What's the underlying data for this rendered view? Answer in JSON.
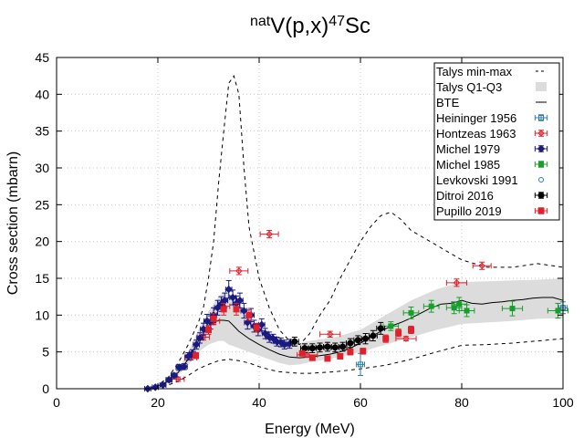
{
  "chart_data": {
    "type": "scatter",
    "title": {
      "sup1": "nat",
      "base1": "V(p,x)",
      "sup2": "47",
      "base2": "Sc"
    },
    "xlabel": "Energy (MeV)",
    "ylabel": "Cross section (mbarn)",
    "xlim": [
      0,
      100
    ],
    "ylim": [
      0,
      45
    ],
    "xticks": [
      0,
      20,
      40,
      60,
      80,
      100
    ],
    "yticks": [
      0,
      5,
      10,
      15,
      20,
      25,
      30,
      35,
      40,
      45
    ],
    "grid": true,
    "legend_position": "top-right",
    "colors": {
      "talys_line": "#000000",
      "band": "#dcdcdc",
      "heininger": "#2b7fa8",
      "hontzeas": "#e0202a",
      "michel1979": "#1a1a80",
      "michel1985": "#16a02a",
      "levkovski": "#2b7fa8",
      "ditroi": "#000000",
      "pupillo": "#e0202a"
    },
    "talys_min": {
      "name": "Talys min-max",
      "x": [
        18,
        20,
        22,
        24,
        26,
        28,
        30,
        32,
        34,
        36,
        38,
        40,
        42,
        44,
        46,
        48,
        50,
        55,
        60,
        65,
        70,
        75,
        80,
        85,
        90,
        95,
        100
      ],
      "y": [
        0.0,
        0.2,
        0.5,
        1.0,
        1.8,
        2.7,
        3.3,
        3.8,
        4.0,
        3.8,
        3.5,
        3.0,
        2.6,
        2.3,
        2.2,
        2.1,
        2.1,
        2.3,
        2.7,
        3.2,
        4.0,
        5.0,
        5.9,
        6.0,
        6.2,
        6.5,
        6.8
      ]
    },
    "talys_max": {
      "x": [
        18,
        20,
        22,
        24,
        26,
        28,
        29,
        30,
        31,
        32,
        33,
        34,
        35,
        36,
        37,
        38,
        40,
        42,
        44,
        46,
        48,
        50,
        52,
        54,
        56,
        58,
        60,
        62,
        64,
        66,
        68,
        70,
        75,
        80,
        85,
        90,
        95,
        100
      ],
      "y": [
        0.0,
        0.5,
        1.5,
        3.5,
        6.0,
        9.0,
        11.0,
        15.0,
        20.0,
        28.0,
        35.0,
        41.5,
        42.5,
        40.0,
        30.0,
        22.0,
        15.0,
        11.0,
        8.0,
        6.5,
        6.0,
        7.5,
        10.0,
        12.0,
        15.0,
        17.5,
        20.0,
        22.0,
        23.5,
        24.0,
        23.0,
        21.5,
        19.5,
        17.5,
        16.5,
        16.5,
        17.0,
        16.5
      ]
    },
    "band": {
      "name": "Talys Q1-Q3",
      "x": [
        18,
        20,
        22,
        24,
        26,
        28,
        30,
        32,
        33,
        34,
        36,
        38,
        40,
        42,
        44,
        46,
        48,
        50,
        55,
        60,
        65,
        70,
        75,
        80,
        85,
        90,
        95,
        100
      ],
      "low": [
        0.0,
        0.3,
        0.8,
        1.8,
        3.2,
        5.0,
        6.0,
        6.5,
        6.5,
        6.0,
        5.5,
        5.0,
        4.5,
        4.0,
        3.5,
        3.2,
        3.3,
        3.6,
        4.2,
        5.0,
        6.0,
        7.0,
        8.0,
        8.8,
        9.0,
        9.2,
        9.5,
        9.6
      ],
      "high": [
        0.0,
        0.5,
        1.2,
        2.6,
        5.0,
        8.0,
        10.5,
        12.5,
        13.2,
        13.0,
        11.5,
        9.5,
        8.0,
        7.0,
        6.3,
        6.0,
        6.2,
        6.5,
        7.0,
        8.0,
        10.0,
        12.0,
        13.5,
        14.5,
        14.6,
        14.7,
        14.8,
        15.0
      ]
    },
    "talys_median": {
      "name": "BTE",
      "x": [
        18,
        20,
        22,
        24,
        26,
        28,
        30,
        31,
        32,
        33,
        34,
        35,
        36,
        38,
        40,
        42,
        44,
        46,
        48,
        50,
        52,
        54,
        56,
        58,
        60,
        62,
        64,
        66,
        68,
        70,
        72,
        74,
        76,
        78,
        80,
        82,
        84,
        86,
        88,
        90,
        92,
        94,
        96,
        98,
        100
      ],
      "y": [
        0.0,
        0.4,
        1.0,
        2.2,
        4.0,
        6.5,
        8.5,
        9.0,
        9.3,
        9.3,
        9.2,
        8.5,
        7.8,
        6.8,
        6.0,
        5.3,
        4.7,
        4.3,
        4.2,
        4.3,
        4.5,
        4.7,
        5.0,
        5.5,
        6.2,
        7.0,
        7.8,
        8.5,
        9.0,
        9.6,
        10.3,
        11.0,
        11.5,
        11.6,
        12.0,
        11.6,
        11.5,
        11.7,
        11.8,
        12.0,
        12.1,
        12.3,
        12.4,
        12.4,
        12.0
      ]
    },
    "series": [
      {
        "name": "Heininger 1956",
        "x": [
          60.0,
          100.0
        ],
        "y": [
          3.3,
          11.0
        ],
        "xerr": [
          0.8,
          0.8
        ],
        "yerr": [
          1.5,
          0.8
        ]
      },
      {
        "name": "Hontzeas 1963",
        "x": [
          24.0,
          26.5,
          29.0,
          31.0,
          33.0,
          36.0,
          42.0,
          49.5,
          54.0,
          69.0,
          79.0,
          84.0
        ],
        "y": [
          1.3,
          4.2,
          7.0,
          9.2,
          11.2,
          16.0,
          21.0,
          4.6,
          7.4,
          6.8,
          14.4,
          16.7
        ],
        "xerr": [
          1.2,
          1.2,
          1.2,
          1.2,
          1.2,
          1.8,
          1.8,
          2.0,
          2.0,
          2.0,
          2.0,
          1.8
        ],
        "yerr": [
          0.3,
          0.3,
          0.4,
          0.5,
          0.6,
          0.5,
          0.5,
          0.3,
          0.4,
          0.3,
          0.5,
          0.5
        ]
      },
      {
        "name": "Michel 1979",
        "x": [
          18.0,
          19.5,
          21.0,
          22.2,
          23.2,
          24.2,
          25.2,
          26.0,
          26.8,
          27.6,
          28.3,
          29.0,
          29.7,
          30.4,
          31.0,
          31.8,
          32.5,
          33.2,
          34.0,
          34.8,
          35.5,
          36.2,
          37.0,
          37.7,
          38.4,
          39.0,
          39.8,
          40.5,
          41.2,
          42.0,
          42.8,
          43.5,
          44.3,
          45.0,
          46.0
        ],
        "y": [
          0.0,
          0.2,
          0.5,
          1.2,
          1.8,
          2.9,
          3.0,
          4.4,
          4.8,
          6.0,
          6.9,
          8.1,
          9.2,
          9.0,
          10.0,
          11.0,
          11.5,
          12.0,
          13.5,
          12.4,
          11.6,
          12.0,
          10.6,
          9.0,
          10.0,
          8.5,
          8.0,
          8.7,
          7.5,
          7.0,
          6.8,
          6.4,
          6.3,
          6.0,
          6.1
        ],
        "xerr": [
          0.6,
          0.6,
          0.6,
          0.6,
          0.6,
          0.6,
          0.6,
          0.6,
          0.6,
          0.6,
          0.6,
          0.6,
          0.6,
          0.6,
          0.6,
          0.6,
          0.6,
          0.6,
          0.6,
          0.6,
          0.6,
          0.6,
          0.6,
          0.6,
          0.6,
          0.6,
          0.6,
          0.6,
          0.6,
          0.6,
          0.6,
          0.6,
          0.6,
          0.6,
          0.6
        ],
        "yerr": [
          0.1,
          0.1,
          0.2,
          0.3,
          0.3,
          0.4,
          0.4,
          0.5,
          0.5,
          0.6,
          0.7,
          0.8,
          0.9,
          0.9,
          1.0,
          1.0,
          1.0,
          1.0,
          1.2,
          1.0,
          1.0,
          1.0,
          1.0,
          0.9,
          0.9,
          0.8,
          0.8,
          0.8,
          0.7,
          0.7,
          0.6,
          0.6,
          0.6,
          0.6,
          0.6
        ]
      },
      {
        "name": "Michel 1985",
        "x": [
          66.0,
          70.0,
          74.0,
          78.5,
          79.5,
          81.0,
          90.0,
          99.0
        ],
        "y": [
          8.5,
          10.3,
          11.2,
          11.0,
          11.5,
          10.6,
          10.9,
          10.6
        ],
        "xerr": [
          1.5,
          1.5,
          1.5,
          1.5,
          1.5,
          1.5,
          2.0,
          2.0
        ],
        "yerr": [
          0.6,
          0.8,
          0.8,
          0.8,
          0.9,
          0.8,
          1.0,
          1.0
        ]
      },
      {
        "name": "Levkovski 1991",
        "x": [
          100.0
        ],
        "y": [
          11.0
        ],
        "xerr": [
          0.0
        ],
        "yerr": [
          0.0
        ]
      },
      {
        "name": "Ditroi 2016",
        "x": [
          47.0,
          49.0,
          50.5,
          52.0,
          53.5,
          55.0,
          56.5,
          58.0,
          59.5,
          61.0,
          62.5,
          64.0
        ],
        "y": [
          6.4,
          5.5,
          5.5,
          5.6,
          5.7,
          5.6,
          5.7,
          6.2,
          6.6,
          6.8,
          7.2,
          8.2
        ],
        "xerr": [
          0.8,
          0.8,
          0.8,
          0.8,
          0.8,
          0.8,
          0.8,
          0.8,
          0.8,
          0.8,
          0.8,
          0.8
        ],
        "yerr": [
          0.6,
          0.6,
          0.6,
          0.6,
          0.6,
          0.6,
          0.6,
          0.6,
          0.6,
          0.7,
          0.7,
          0.8
        ]
      },
      {
        "name": "Pupillo 2019",
        "x": [
          27.5,
          30.0,
          31.0,
          33.0,
          35.5,
          38.0,
          39.5,
          48.5,
          50.5,
          53.5,
          56.0,
          58.0,
          60.5,
          65.0,
          67.5,
          70.0
        ],
        "y": [
          4.5,
          8.0,
          9.5,
          10.8,
          10.8,
          10.0,
          8.3,
          4.8,
          4.2,
          4.1,
          4.4,
          5.0,
          5.1,
          6.8,
          7.6,
          8.0
        ],
        "xerr": [
          0.4,
          0.4,
          0.4,
          0.4,
          0.4,
          0.4,
          0.4,
          0.4,
          0.4,
          0.4,
          0.4,
          0.4,
          0.4,
          0.4,
          0.4,
          0.4
        ],
        "yerr": [
          0.4,
          0.6,
          0.7,
          0.8,
          0.8,
          0.7,
          0.6,
          0.3,
          0.3,
          0.3,
          0.3,
          0.4,
          0.4,
          0.5,
          0.5,
          0.5
        ]
      }
    ],
    "legend": [
      {
        "label": "Talys min-max",
        "style": "dashed"
      },
      {
        "label": "Talys Q1-Q3",
        "style": "band"
      },
      {
        "label": "BTE",
        "style": "line"
      },
      {
        "label": "Heininger 1956",
        "style": "heininger"
      },
      {
        "label": "Hontzeas 1963",
        "style": "hontzeas"
      },
      {
        "label": "Michel 1979",
        "style": "michel1979"
      },
      {
        "label": "Michel 1985",
        "style": "michel1985"
      },
      {
        "label": "Levkovski 1991",
        "style": "levkovski"
      },
      {
        "label": "Ditroi 2016",
        "style": "ditroi"
      },
      {
        "label": "Pupillo 2019",
        "style": "pupillo"
      }
    ]
  }
}
